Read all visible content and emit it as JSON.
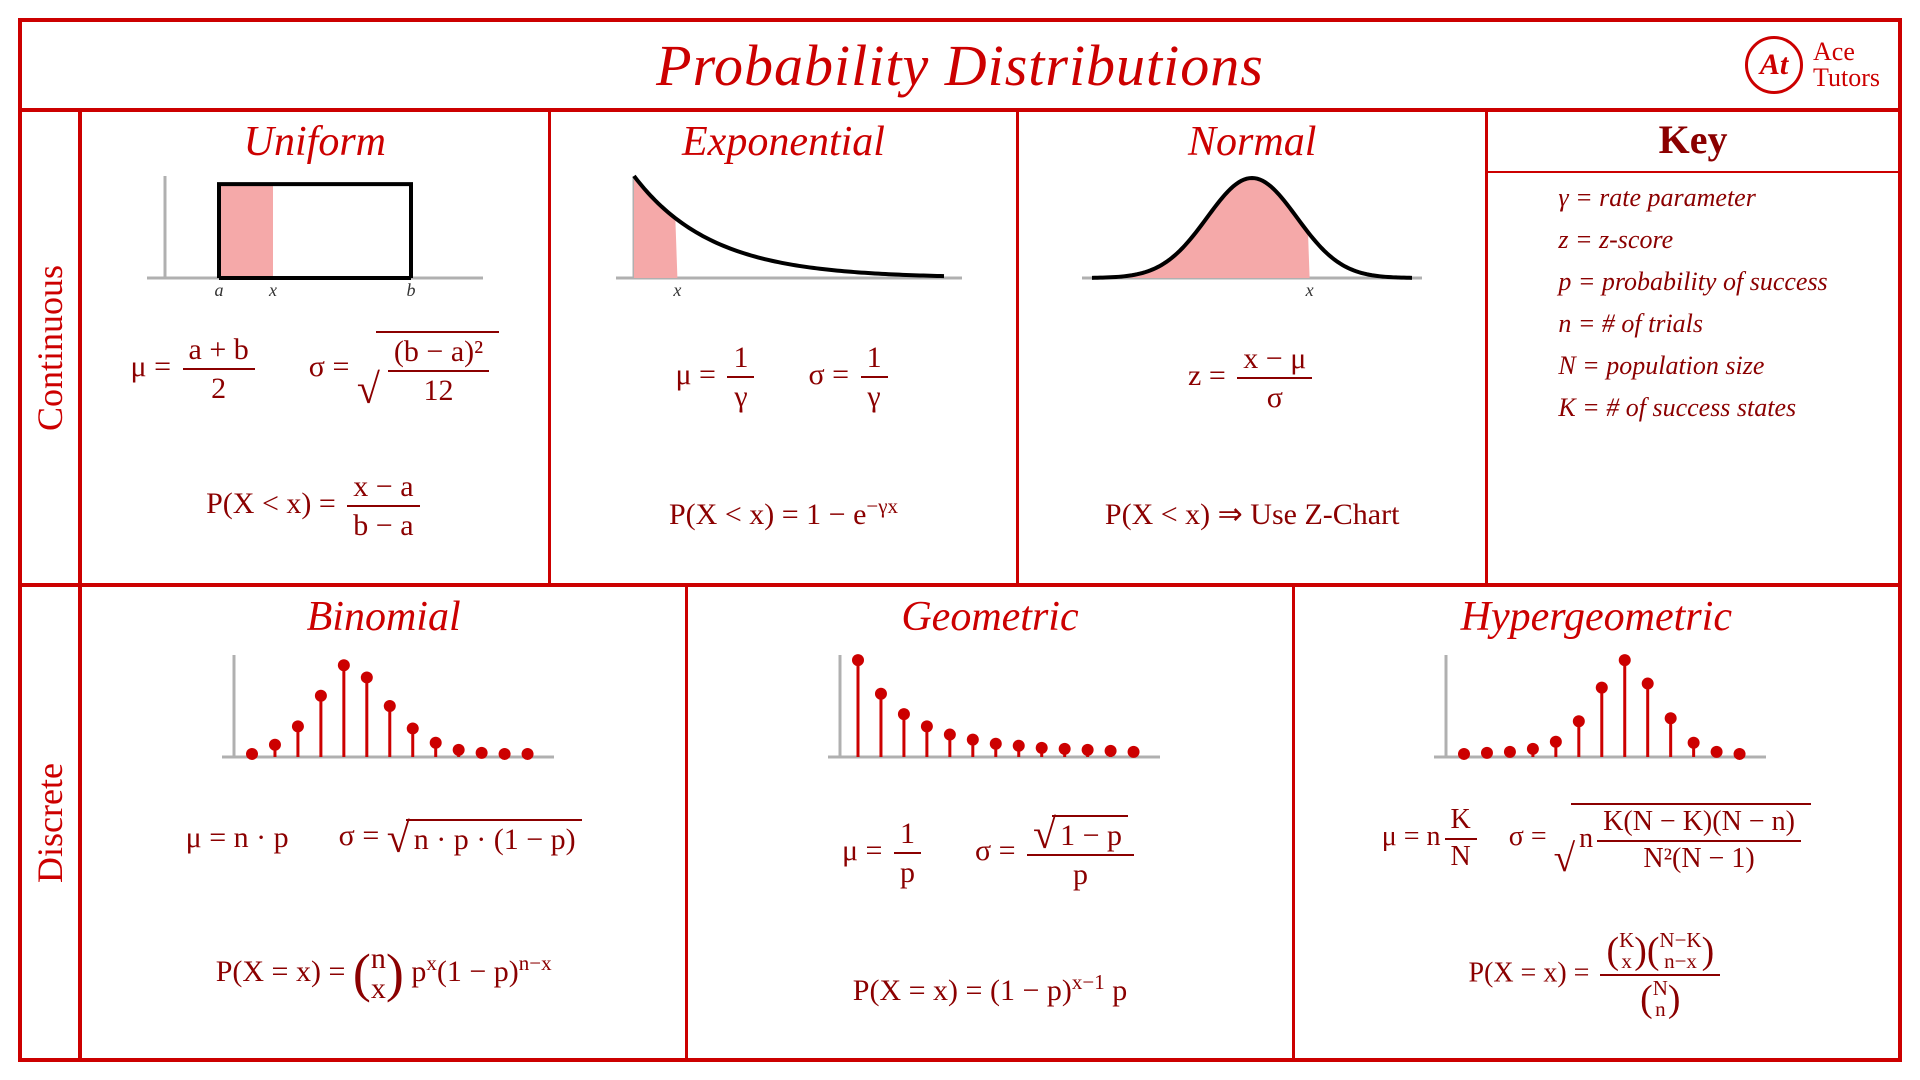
{
  "title": "Probability Distributions",
  "brand": {
    "logo_text": "At",
    "line1": "Ace",
    "line2": "Tutors"
  },
  "colors": {
    "red": "#cc0000",
    "darkred": "#8b0000",
    "fill": "#f5a9a9",
    "grey": "#b0b0b0",
    "black": "#000000",
    "bg": "#ffffff"
  },
  "row_labels": {
    "continuous": "Continuous",
    "discrete": "Discrete"
  },
  "key": {
    "header": "Key",
    "items": [
      "γ = rate parameter",
      "z = z-score",
      "p = probability of success",
      "n = # of trials",
      "N = population size",
      "K = # of success states"
    ]
  },
  "continuous": {
    "uniform": {
      "title": "Uniform",
      "chart": {
        "type": "continuous-pdf",
        "shape": "rectangle",
        "a": 0.18,
        "b": 0.82,
        "x": 0.36,
        "height": 0.92,
        "labels": {
          "a": "a",
          "x": "x",
          "b": "b"
        },
        "curve_color": "#000000",
        "curve_width": 4,
        "fill_color": "#f5a9a9",
        "axis_color": "#b0b0b0"
      },
      "mu": {
        "lhs": "μ =",
        "num": "a + b",
        "den": "2"
      },
      "sigma": {
        "lhs": "σ =",
        "rad_num": "(b − a)²",
        "rad_den": "12"
      },
      "cdf": {
        "lhs": "P(X < x) =",
        "num": "x − a",
        "den": "b − a"
      }
    },
    "exponential": {
      "title": "Exponential",
      "chart": {
        "type": "continuous-pdf",
        "shape": "exponential",
        "gamma": 4.0,
        "x": 0.14,
        "labels": {
          "x": "x"
        },
        "curve_color": "#000000",
        "curve_width": 4,
        "fill_color": "#f5a9a9",
        "axis_color": "#b0b0b0"
      },
      "mu": {
        "lhs": "μ =",
        "num": "1",
        "den": "γ"
      },
      "sigma": {
        "lhs": "σ =",
        "num": "1",
        "den": "γ"
      },
      "cdf": {
        "text": "P(X < x) = 1 − e",
        "exp": "−γx"
      }
    },
    "normal": {
      "title": "Normal",
      "chart": {
        "type": "continuous-pdf",
        "shape": "normal",
        "mean": 0.5,
        "sd": 0.14,
        "x": 0.68,
        "labels": {
          "x": "x"
        },
        "curve_color": "#000000",
        "curve_width": 4,
        "fill_color": "#f5a9a9",
        "axis_color": "#b0b0b0"
      },
      "z": {
        "lhs": "z =",
        "num": "x − μ",
        "den": "σ"
      },
      "cdf": {
        "text": "P(X < x) ⇒ Use Z-Chart"
      }
    }
  },
  "discrete": {
    "binomial": {
      "title": "Binomial",
      "chart": {
        "type": "discrete-pmf",
        "values": [
          0.03,
          0.12,
          0.3,
          0.6,
          0.9,
          0.78,
          0.5,
          0.28,
          0.14,
          0.07,
          0.04,
          0.03,
          0.03
        ],
        "dot_color": "#cc0000",
        "stem_color": "#cc0000",
        "axis_color": "#b0b0b0",
        "dot_radius": 6,
        "stem_width": 3
      },
      "mu": {
        "text": "μ = n · p"
      },
      "sigma": {
        "lhs": "σ =",
        "rad": "n · p · (1 − p)"
      },
      "pmf_lhs": "P(X = x) =",
      "binom_top": "n",
      "binom_bot": "x",
      "pmf_tail1": "p",
      "pmf_exp1": "x",
      "pmf_tail2": "(1 − p)",
      "pmf_exp2": "n−x"
    },
    "geometric": {
      "title": "Geometric",
      "chart": {
        "type": "discrete-pmf",
        "values": [
          0.95,
          0.62,
          0.42,
          0.3,
          0.22,
          0.17,
          0.13,
          0.11,
          0.09,
          0.08,
          0.07,
          0.06,
          0.05
        ],
        "dot_color": "#cc0000",
        "stem_color": "#cc0000",
        "axis_color": "#b0b0b0",
        "dot_radius": 6,
        "stem_width": 3
      },
      "mu": {
        "lhs": "μ =",
        "num": "1",
        "den": "p"
      },
      "sigma": {
        "lhs": "σ =",
        "rad": "1 − p",
        "den": "p"
      },
      "pmf_lhs": "P(X = x) = (1 − p)",
      "pmf_exp": "x−1",
      "pmf_tail": " p"
    },
    "hypergeometric": {
      "title": "Hypergeometric",
      "chart": {
        "type": "discrete-pmf",
        "values": [
          0.03,
          0.04,
          0.05,
          0.08,
          0.15,
          0.35,
          0.68,
          0.95,
          0.72,
          0.38,
          0.14,
          0.05,
          0.03
        ],
        "dot_color": "#cc0000",
        "stem_color": "#cc0000",
        "axis_color": "#b0b0b0",
        "dot_radius": 6,
        "stem_width": 3
      },
      "mu": {
        "lhs": "μ = n",
        "num": "K",
        "den": "N"
      },
      "sigma": {
        "lhs": "σ =",
        "rad_pre": "n",
        "rad_num": "K(N − K)(N − n)",
        "rad_den": "N²(N − 1)"
      },
      "pmf_lhs": "P(X = x) =",
      "num_b1_top": "K",
      "num_b1_bot": "x",
      "num_b2_top": "N−K",
      "num_b2_bot": "n−x",
      "den_b_top": "N",
      "den_b_bot": "n"
    }
  }
}
